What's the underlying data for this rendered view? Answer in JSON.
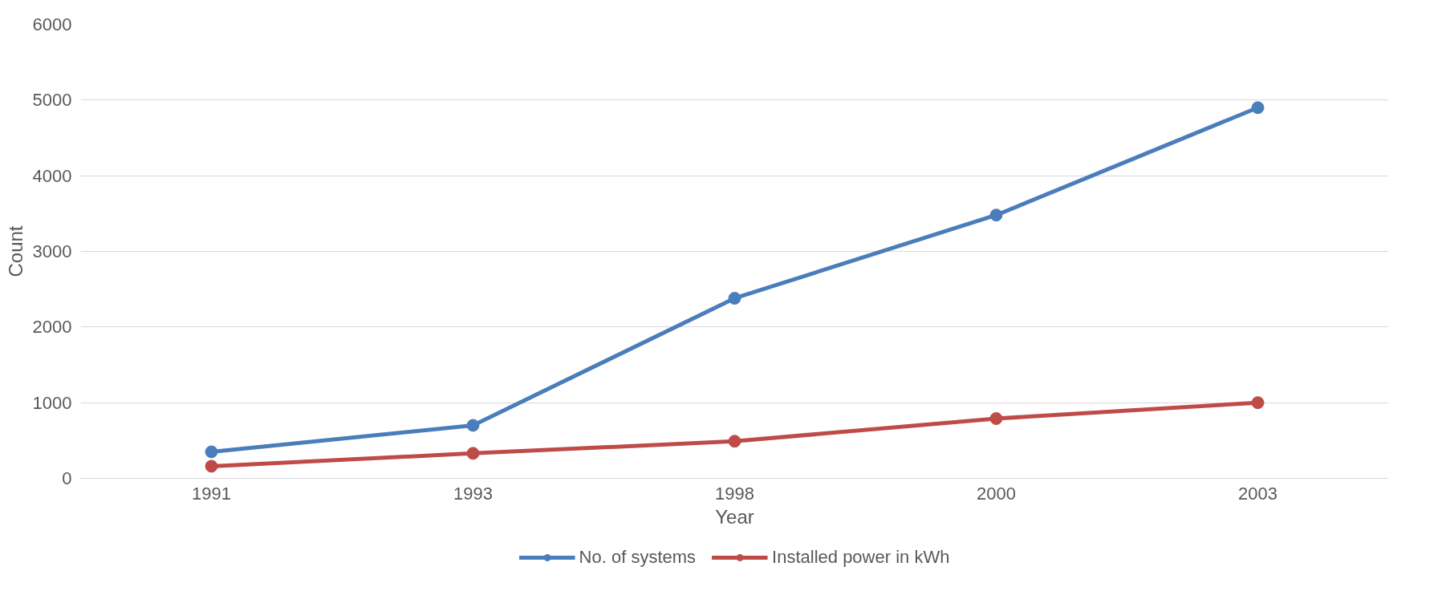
{
  "chart_data": {
    "type": "line",
    "xlabel": "Year",
    "ylabel": "Count",
    "categories": [
      "1991",
      "1993",
      "1998",
      "2000",
      "2003"
    ],
    "series": [
      {
        "name": "No. of systems",
        "color": "#4a7ebb",
        "values": [
          350,
          700,
          2380,
          3480,
          4900
        ]
      },
      {
        "name": "Installed power in kWh",
        "color": "#be4b48",
        "values": [
          160,
          330,
          490,
          790,
          1000
        ]
      }
    ],
    "ylim": [
      0,
      6000
    ],
    "yticks": [
      0,
      1000,
      2000,
      3000,
      4000,
      5000,
      6000
    ],
    "grid": "y",
    "legend": "bottom",
    "marker": "circle",
    "line_style": "solid"
  }
}
